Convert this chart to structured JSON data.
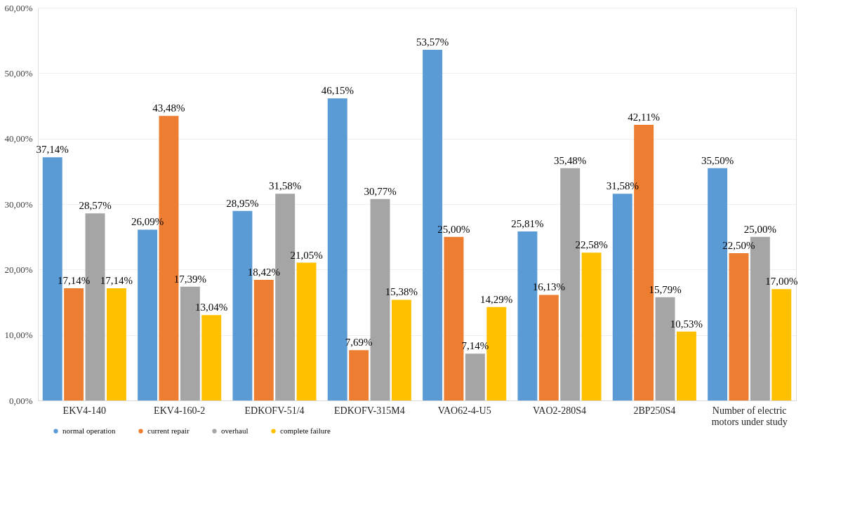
{
  "chart_data": {
    "type": "bar",
    "categories": [
      "EKV4-140",
      "EKV4-160-2",
      "EDKOFV-51/4",
      "EDKOFV-315M4",
      "VAO62-4-U5",
      "VAO2-280S4",
      "2BP250S4",
      "Number of electric motors under study"
    ],
    "series": [
      {
        "name": "normal operation",
        "color": "#5b9bd5",
        "values": [
          37.14,
          26.09,
          28.95,
          46.15,
          53.57,
          25.81,
          31.58,
          35.5
        ],
        "value_labels": [
          "37,14%",
          "26,09%",
          "28,95%",
          "46,15%",
          "53,57%",
          "25,81%",
          "31,58%",
          "35,50%"
        ]
      },
      {
        "name": "current repair",
        "color": "#ed7d31",
        "values": [
          17.14,
          43.48,
          18.42,
          7.69,
          25.0,
          16.13,
          42.11,
          22.5
        ],
        "value_labels": [
          "17,14%",
          "43,48%",
          "18,42%",
          "7,69%",
          "25,00%",
          "16,13%",
          "42,11%",
          "22,50%"
        ]
      },
      {
        "name": "overhaul",
        "color": "#a5a5a5",
        "values": [
          28.57,
          17.39,
          31.58,
          30.77,
          7.14,
          35.48,
          15.79,
          25.0
        ],
        "value_labels": [
          "28,57%",
          "17,39%",
          "31,58%",
          "30,77%",
          "7,14%",
          "35,48%",
          "15,79%",
          "25,00%"
        ]
      },
      {
        "name": "complete failure",
        "color": "#ffc000",
        "values": [
          17.14,
          13.04,
          21.05,
          15.38,
          14.29,
          22.58,
          10.53,
          17.0
        ],
        "value_labels": [
          "17,14%",
          "13,04%",
          "21,05%",
          "15,38%",
          "14,29%",
          "22,58%",
          "10,53%",
          "17,00%"
        ]
      }
    ],
    "ylim": [
      0,
      60
    ],
    "yticks": [
      {
        "value": 0,
        "label": "0,00%"
      },
      {
        "value": 10,
        "label": "10,00%"
      },
      {
        "value": 20,
        "label": "20,00%"
      },
      {
        "value": 30,
        "label": "30,00%"
      },
      {
        "value": 40,
        "label": "40,00%"
      },
      {
        "value": 50,
        "label": "50,00%"
      },
      {
        "value": 60,
        "label": "60,00%"
      }
    ],
    "grid": "y",
    "legend": "bottom"
  }
}
